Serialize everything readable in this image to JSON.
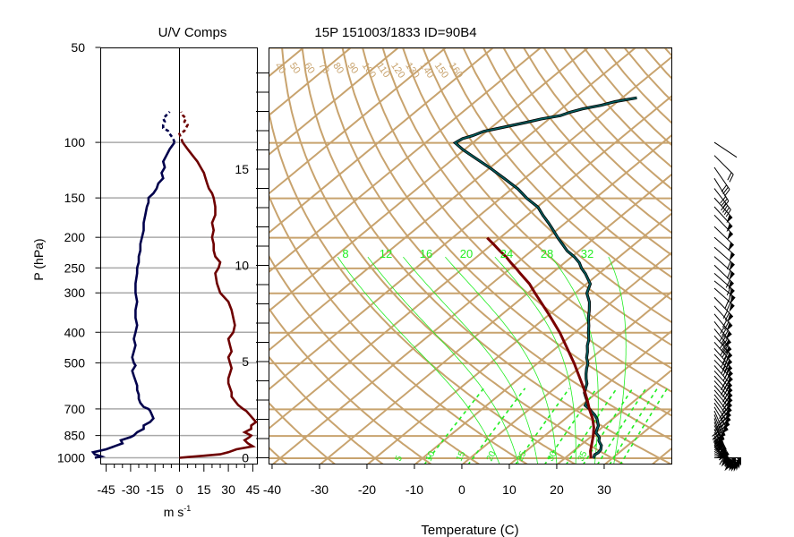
{
  "colors": {
    "u_wind": "#00004c",
    "v_wind": "#6e0000",
    "dry_adiabat": "#c8a36e",
    "mixing_ratio": "#22ee22",
    "temperature_profile": "#005f5f",
    "parcel_path": "#7a0000",
    "wind_barb": "#000000",
    "grid": "#a9a9a9",
    "axis": "#000000"
  },
  "chart_data": [
    {
      "type": "line",
      "title": "U/V Comps",
      "xlabel": "m s",
      "xlabel_superscript": "-1",
      "ylabel": "P (hPa)",
      "ylog": true,
      "ylim": [
        1000,
        50
      ],
      "xlim": [
        -55,
        55
      ],
      "grid": true,
      "y_tick_labels": [
        "50",
        "100",
        "150",
        "200",
        "250",
        "300",
        "400",
        "500",
        "700",
        "850",
        "1000"
      ],
      "y_tick_values": [
        50,
        100,
        150,
        200,
        250,
        300,
        400,
        500,
        700,
        850,
        1000
      ],
      "x_tick_labels": [
        "-45",
        "-30",
        "-15",
        "0",
        "15",
        "30",
        "45"
      ],
      "x_tick_values": [
        -45,
        -30,
        -15,
        0,
        15,
        30,
        45
      ],
      "series": [
        {
          "key": "u",
          "p": [
            1000,
            990,
            975,
            960,
            940,
            920,
            900,
            880,
            860,
            850,
            830,
            810,
            790,
            770,
            750,
            730,
            710,
            700,
            690,
            670,
            650,
            630,
            610,
            590,
            570,
            550,
            530,
            510,
            500,
            480,
            460,
            440,
            420,
            400,
            380,
            360,
            340,
            320,
            300,
            280,
            260,
            250,
            240,
            230,
            220,
            210,
            200,
            190,
            180,
            170,
            160,
            155,
            150,
            145,
            140,
            135,
            130,
            125,
            120,
            115,
            110,
            105,
            100,
            97,
            94,
            92,
            90,
            88,
            86,
            84,
            82,
            80
          ],
          "values": [
            -52,
            -48,
            -52,
            -53,
            -45,
            -40,
            -35,
            -36,
            -30,
            -28,
            -26,
            -22,
            -22,
            -18,
            -16,
            -17,
            -18,
            -19,
            -22,
            -24,
            -25,
            -25,
            -26,
            -26,
            -27,
            -28,
            -29,
            -27,
            -28,
            -29,
            -28,
            -27,
            -28,
            -27,
            -26,
            -27,
            -27,
            -26,
            -27,
            -27,
            -26,
            -26,
            -25,
            -25,
            -24,
            -24,
            -23,
            -22,
            -22,
            -21,
            -20,
            -19,
            -19,
            -16,
            -14,
            -13,
            -10,
            -11,
            -9,
            -10,
            -8,
            -6,
            -3,
            -4,
            -6,
            -7,
            -10,
            -10,
            -9,
            -10,
            -8,
            -6
          ]
        },
        {
          "key": "v",
          "p": [
            1000,
            995,
            985,
            975,
            960,
            940,
            920,
            900,
            880,
            860,
            850,
            830,
            810,
            790,
            770,
            750,
            730,
            710,
            700,
            680,
            660,
            640,
            620,
            600,
            580,
            560,
            540,
            520,
            500,
            480,
            460,
            440,
            420,
            400,
            380,
            360,
            340,
            320,
            300,
            280,
            260,
            250,
            240,
            230,
            220,
            210,
            200,
            190,
            180,
            170,
            160,
            150,
            145,
            140,
            135,
            130,
            125,
            120,
            115,
            110,
            105,
            100,
            97,
            94,
            92,
            90,
            88,
            86,
            84,
            82,
            80
          ],
          "values": [
            0,
            5,
            15,
            25,
            30,
            35,
            45,
            42,
            40,
            43,
            44,
            40,
            44,
            44,
            47,
            45,
            43,
            41,
            39,
            36,
            34,
            32,
            32,
            31,
            30,
            30,
            31,
            32,
            31,
            30,
            32,
            31,
            30,
            33,
            34,
            33,
            32,
            30,
            25,
            23,
            22,
            24,
            25,
            22,
            21,
            21,
            20,
            21,
            20,
            22,
            22,
            21,
            20,
            18,
            17,
            16,
            15,
            13,
            11,
            8,
            5,
            2,
            1,
            0,
            3,
            4,
            5,
            3,
            4,
            2,
            1
          ]
        }
      ]
    },
    {
      "type": "line",
      "title": "15P 151003/1833 ID=90B4",
      "xlabel": "Temperature (C)",
      "xlim": [
        -45,
        40
      ],
      "ylim_p": [
        1050,
        45
      ],
      "skew": 35,
      "x_tick_labels": [
        "-40",
        "-30",
        "-20",
        "-10",
        "0",
        "10",
        "20",
        "30"
      ],
      "x_tick_values": [
        -40,
        -30,
        -20,
        -10,
        0,
        10,
        20,
        30
      ],
      "pressure_lines": [
        50,
        100,
        150,
        200,
        250,
        300,
        400,
        500,
        700,
        850,
        1000
      ],
      "height_axis": {
        "unit": "km",
        "tick_labels": [
          "0",
          "5",
          "10",
          "15"
        ],
        "tick_values": [
          0,
          5,
          10,
          15
        ],
        "minor_step": 1
      },
      "dry_adiabat_labels": [
        "40",
        "50",
        "60",
        "70",
        "80",
        "90",
        "100",
        "110",
        "120",
        "130",
        "140",
        "150",
        "160"
      ],
      "dry_adiabat_values": [
        40,
        50,
        60,
        70,
        80,
        90,
        100,
        110,
        120,
        130,
        140,
        150,
        160
      ],
      "mixing_ratio_labels": [
        "8",
        "12",
        "16",
        "20",
        "24",
        "28",
        "32"
      ],
      "mixing_ratio_values": [
        8,
        12,
        16,
        20,
        24,
        28,
        32
      ],
      "lower_labels": [
        "5",
        "10",
        "15",
        "20",
        "25",
        "30",
        "35"
      ],
      "lower_label_values": [
        5,
        10,
        15,
        20,
        25,
        30,
        35
      ],
      "series": [
        {
          "key": "temperature",
          "p": [
            1000,
            990,
            975,
            960,
            940,
            925,
            910,
            900,
            880,
            860,
            850,
            830,
            810,
            790,
            770,
            750,
            730,
            710,
            700,
            680,
            660,
            640,
            620,
            600,
            580,
            560,
            540,
            520,
            500,
            480,
            460,
            440,
            420,
            400,
            380,
            360,
            340,
            320,
            300,
            280,
            260,
            250,
            240,
            230,
            220,
            210,
            200,
            190,
            180,
            170,
            160,
            150,
            140,
            130,
            120,
            110,
            105,
            100,
            97,
            95,
            92,
            90,
            88,
            86,
            84,
            82,
            80,
            78,
            76,
            74,
            72
          ],
          "values": [
            26,
            25.8,
            25.4,
            25.6,
            25.4,
            24.9,
            24.4,
            23.8,
            22.7,
            22.0,
            21.4,
            20.0,
            19.4,
            18.8,
            17.8,
            16.7,
            15.3,
            13.6,
            12.8,
            10.8,
            10.2,
            8.8,
            7.4,
            6.5,
            5.6,
            4.2,
            2.9,
            1.7,
            0.6,
            -1.1,
            -2.4,
            -4.0,
            -5.3,
            -7.1,
            -8.8,
            -10.8,
            -12.6,
            -14.7,
            -17.5,
            -19.2,
            -22.8,
            -25.0,
            -26.9,
            -29.4,
            -32.5,
            -35.1,
            -37.8,
            -40.5,
            -43.4,
            -46.6,
            -49.8,
            -54.4,
            -58.7,
            -64.1,
            -70.0,
            -76.8,
            -80.4,
            -83.7,
            -83.2,
            -81.9,
            -80.6,
            -78.4,
            -76.1,
            -73.8,
            -71.7,
            -68.5,
            -67.3,
            -65.5,
            -62.5,
            -60.5,
            -56.9
          ]
        },
        {
          "key": "parcel",
          "p": [
            1000,
            950,
            900,
            850,
            800,
            750,
            700,
            650,
            600,
            550,
            500,
            450,
            400,
            350,
            300,
            280,
            260,
            250,
            240,
            230,
            220,
            210,
            200
          ],
          "values": [
            25.5,
            23.6,
            22.0,
            20.3,
            18.3,
            15.8,
            12.7,
            9.6,
            6.1,
            2.1,
            -2.3,
            -7.4,
            -13.1,
            -20.1,
            -28.4,
            -32.0,
            -36.5,
            -38.8,
            -41.3,
            -43.8,
            -46.7,
            -49.6,
            -52.7
          ]
        }
      ],
      "wind_barb_note": "wind barbs along right side",
      "wind_barbs": {
        "p": [
          1000,
          985,
          970,
          955,
          940,
          925,
          910,
          895,
          880,
          865,
          850,
          830,
          810,
          790,
          770,
          750,
          730,
          710,
          690,
          670,
          650,
          630,
          610,
          590,
          570,
          550,
          530,
          510,
          490,
          470,
          450,
          430,
          410,
          390,
          370,
          350,
          330,
          310,
          290,
          275,
          260,
          245,
          230,
          215,
          200,
          185,
          170,
          160,
          150,
          140,
          130,
          120,
          110,
          100
        ],
        "u": [
          -52,
          -50,
          -52,
          -50,
          -45,
          -40,
          -35,
          -36,
          -30,
          -29,
          -28,
          -26,
          -22,
          -22,
          -18,
          -16,
          -17,
          -18,
          -22,
          -24,
          -25,
          -25,
          -26,
          -26,
          -27,
          -28,
          -29,
          -27,
          -28,
          -29,
          -28,
          -27,
          -28,
          -27,
          -26,
          -27,
          -27,
          -26,
          -27,
          -27,
          -26,
          -25,
          -25,
          -24,
          -23,
          -22,
          -21,
          -20,
          -19,
          -14,
          -10,
          -9,
          -8,
          -3
        ],
        "v": [
          0,
          10,
          20,
          28,
          33,
          36,
          45,
          42,
          40,
          43,
          44,
          40,
          44,
          44,
          47,
          45,
          43,
          41,
          37,
          35,
          33,
          32,
          31,
          30,
          30,
          31,
          32,
          31,
          30,
          31,
          32,
          31,
          32,
          33,
          33,
          32,
          30,
          27,
          24,
          22,
          23,
          24,
          22,
          21,
          20,
          21,
          22,
          22,
          21,
          18,
          16,
          13,
          8,
          2
        ]
      }
    }
  ]
}
